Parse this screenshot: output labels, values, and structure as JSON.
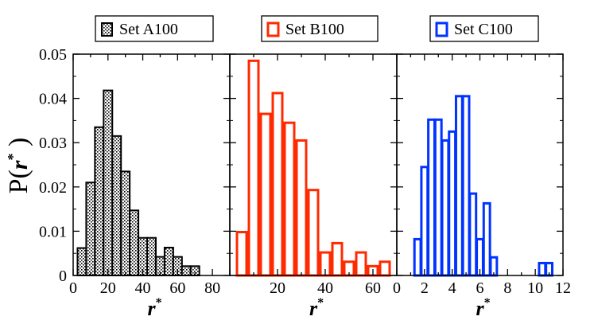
{
  "chart_data": [
    {
      "type": "bar",
      "series": [
        {
          "name": "Set A100",
          "color": "#000000",
          "pattern": "dotted-fill"
        }
      ],
      "x": [
        5,
        10,
        15,
        20,
        25,
        30,
        35,
        40,
        45,
        50,
        55,
        60,
        65,
        70,
        75,
        80,
        85
      ],
      "values": [
        0.0062,
        0.021,
        0.0335,
        0.0418,
        0.0315,
        0.0235,
        0.0147,
        0.0085,
        0.0085,
        0.0042,
        0.0063,
        0.0042,
        0.0021,
        0.0021,
        0,
        0,
        0
      ],
      "bar_width": 5,
      "xlabel": "r",
      "xlabel_sup": "*",
      "ylabel": "P(",
      "ylabel_sup": "*",
      "ylabel_close": ")",
      "ylabel_r": "r",
      "xlim": [
        0,
        90
      ],
      "ylim": [
        0,
        0.05
      ],
      "xticks": [
        "0",
        "20",
        "40",
        "60",
        "80"
      ],
      "yticks": [
        "0",
        "0.01",
        "0.02",
        "0.03",
        "0.04",
        "0.05"
      ],
      "legend": "top",
      "grid": false
    },
    {
      "type": "bar",
      "series": [
        {
          "name": "Set B100",
          "color": "#ff2a00",
          "pattern": "outline"
        }
      ],
      "x": [
        5,
        10,
        15,
        20,
        25,
        30,
        35,
        40,
        45,
        50,
        55,
        60,
        65
      ],
      "values": [
        0.0098,
        0.0485,
        0.0365,
        0.0412,
        0.0345,
        0.0305,
        0.0193,
        0.0052,
        0.0073,
        0.0031,
        0.0052,
        0.0021,
        0.0031
      ],
      "bar_width": 4,
      "xlabel": "r",
      "xlabel_sup": "*",
      "xlim": [
        0,
        70
      ],
      "ylim": [
        0,
        0.05
      ],
      "xticks": [
        "20",
        "40",
        "60"
      ],
      "legend": "top",
      "grid": false
    },
    {
      "type": "bar",
      "series": [
        {
          "name": "Set C100",
          "color": "#0033ff",
          "pattern": "outline"
        }
      ],
      "x": [
        1.5,
        2,
        2.5,
        3,
        3.5,
        4,
        4.5,
        5,
        5.5,
        6,
        6.5,
        7,
        7.5,
        8,
        8.5,
        9,
        9.5,
        10,
        10.5,
        11,
        11.5,
        12
      ],
      "values": [
        0.0082,
        0.0245,
        0.0352,
        0.0352,
        0.0305,
        0.0325,
        0.0405,
        0.0405,
        0.0185,
        0.0082,
        0.0163,
        0.0041,
        0,
        0,
        0,
        0,
        0,
        0,
        0.0028,
        0.0028,
        0,
        0
      ],
      "bar_width": 0.45,
      "xlabel": "r",
      "xlabel_sup": "*",
      "xlim": [
        0,
        12
      ],
      "ylim": [
        0,
        0.05
      ],
      "xticks": [
        "0",
        "2",
        "4",
        "6",
        "8",
        "10",
        "12"
      ],
      "legend": "top",
      "grid": false
    }
  ]
}
